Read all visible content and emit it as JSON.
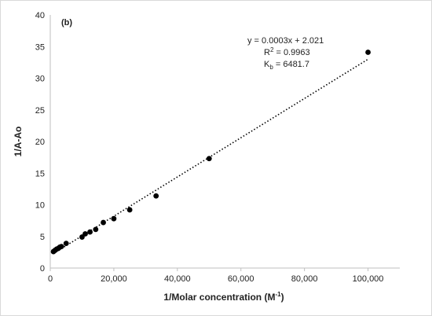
{
  "chart_data": {
    "type": "scatter",
    "panel_label": "(b)",
    "xlabel": "1/Molar concentration  (M",
    "xlabel_sup": "-1",
    "xlabel_close": ")",
    "ylabel": "1/A-Ao",
    "xlim": [
      0,
      110000
    ],
    "ylim": [
      0,
      40
    ],
    "x_ticks": [
      0,
      20000,
      40000,
      60000,
      80000,
      100000
    ],
    "x_tick_labels": [
      "0",
      "20,000",
      "40,000",
      "60,000",
      "80,000",
      "100,000"
    ],
    "y_ticks": [
      0,
      5,
      10,
      15,
      20,
      25,
      30,
      35,
      40
    ],
    "y_tick_labels": [
      "0",
      "5",
      "10",
      "15",
      "20",
      "25",
      "30",
      "35",
      "40"
    ],
    "grid": false,
    "series": [
      {
        "x": [
          1000,
          1500,
          2000,
          2500,
          3000,
          3500,
          5000,
          10000,
          11000,
          12500,
          14300,
          16700,
          20000,
          25000,
          33300,
          50000,
          100000
        ],
        "y": [
          2.6,
          2.8,
          3.0,
          3.1,
          3.3,
          3.4,
          3.9,
          4.9,
          5.4,
          5.7,
          6.1,
          7.2,
          7.8,
          9.2,
          11.4,
          17.3,
          34.1
        ]
      }
    ],
    "trendline": {
      "type": "linear",
      "style": "dotted",
      "x": [
        1000,
        100000
      ],
      "y": [
        2.3,
        33.0
      ]
    },
    "annotation": {
      "equation": "y = 0.0003x + 2.021",
      "r2_prefix": "R",
      "r2_sup": "2",
      "r2_suffix": " = 0.9963",
      "kb_prefix": "K",
      "kb_sub": "b",
      "kb_suffix": " = 6481.7"
    }
  },
  "colors": {
    "marker": "#000000",
    "axis": "#bfbfbf",
    "trendline": "#000000"
  }
}
